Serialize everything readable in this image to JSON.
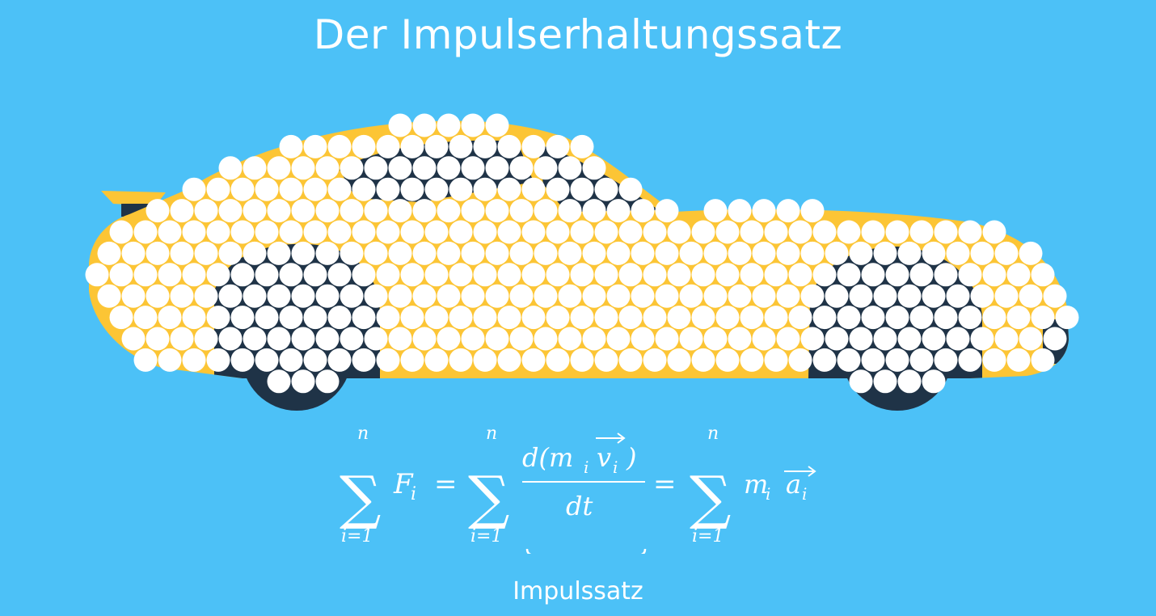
{
  "title": "Der Impulserhaltungssatz",
  "formula": {
    "sum_upper": "n",
    "sum_lower": "i=1",
    "term1": "F",
    "term1_sub": "i",
    "equals": "=",
    "numerator": "d(m",
    "numerator_sub": "i",
    "numerator_v": "v",
    "numerator_v_sub": "i",
    "numerator_close": ")",
    "denominator": "dt",
    "term3_m": "m",
    "term3_m_sub": "i",
    "term3_a": "a",
    "term3_a_sub": "i"
  },
  "brace_label": "Impulssatz",
  "colors": {
    "background": "#4cc1f7",
    "car_body": "#fcc535",
    "car_dark": "#1f3347",
    "particles": "#ffffff"
  }
}
